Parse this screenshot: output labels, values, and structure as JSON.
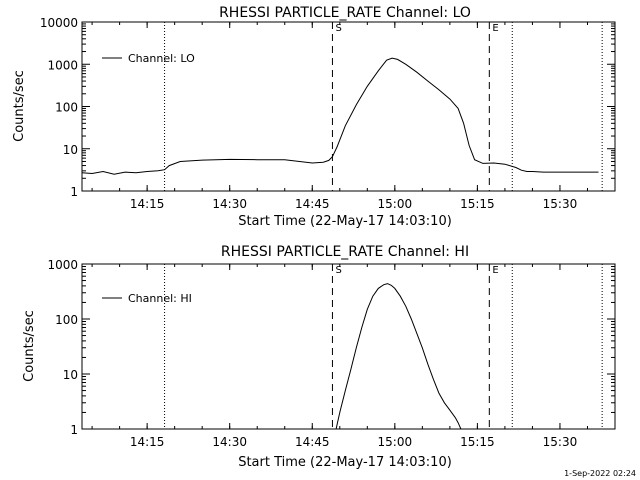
{
  "footer": {
    "timestamp": "1-Sep-2022 02:24"
  },
  "chart_data": [
    {
      "type": "line",
      "title": "RHESSI PARTICLE_RATE Channel: LO",
      "xlabel": "Start Time (22-May-17 14:03:10)",
      "ylabel": "Counts/sec",
      "xlim": [
        "14:03:10",
        "15:40:00"
      ],
      "ylim": [
        1,
        10000
      ],
      "y_scale": "log",
      "x_ticks": [
        "14:15",
        "14:30",
        "14:45",
        "15:00",
        "15:15",
        "15:30"
      ],
      "y_ticks": [
        "1",
        "10",
        "100",
        "1000",
        "10000"
      ],
      "legend": {
        "position": "top-left",
        "entries": [
          "Channel: LO"
        ]
      },
      "markers": [
        {
          "label": "",
          "time": "14:18:10",
          "style": "dotted"
        },
        {
          "label": "S",
          "time": "14:48:40",
          "style": "dashed"
        },
        {
          "label": "E",
          "time": "15:17:10",
          "style": "dashed"
        },
        {
          "label": "",
          "time": "15:21:20",
          "style": "dotted"
        },
        {
          "label": "",
          "time": "15:37:40",
          "style": "dotted"
        }
      ],
      "series": [
        {
          "name": "Channel: LO",
          "x": [
            "14:03:10",
            "14:05:00",
            "14:07:00",
            "14:09:00",
            "14:11:00",
            "14:13:00",
            "14:15:00",
            "14:17:00",
            "14:18:10",
            "14:19:00",
            "14:21:00",
            "14:25:00",
            "14:30:00",
            "14:35:00",
            "14:40:00",
            "14:45:00",
            "14:47:00",
            "14:48:00",
            "14:48:40",
            "14:49:30",
            "14:51:00",
            "14:53:00",
            "14:55:00",
            "14:57:00",
            "14:58:30",
            "14:59:30",
            "15:00:30",
            "15:02:00",
            "15:04:00",
            "15:06:00",
            "15:08:00",
            "15:10:00",
            "15:11:30",
            "15:12:30",
            "15:13:30",
            "15:14:30",
            "15:16:00",
            "15:18:00",
            "15:20:00",
            "15:22:00",
            "15:23:00",
            "15:24:00",
            "15:25:00",
            "15:27:00",
            "15:30:00",
            "15:33:00",
            "15:35:00",
            "15:37:00"
          ],
          "y": [
            2.7,
            2.6,
            2.9,
            2.5,
            2.8,
            2.7,
            2.9,
            3.0,
            3.2,
            4.0,
            5.0,
            5.4,
            5.6,
            5.5,
            5.5,
            4.6,
            4.8,
            5.3,
            6.5,
            11,
            35,
            110,
            300,
            700,
            1250,
            1400,
            1300,
            1000,
            650,
            400,
            250,
            150,
            90,
            40,
            12,
            5.5,
            4.5,
            4.6,
            4.3,
            3.6,
            3.1,
            2.9,
            2.9,
            2.8,
            2.8,
            2.8,
            2.8,
            2.8
          ]
        }
      ]
    },
    {
      "type": "line",
      "title": "RHESSI PARTICLE_RATE Channel: HI",
      "xlabel": "Start Time (22-May-17 14:03:10)",
      "ylabel": "Counts/sec",
      "xlim": [
        "14:03:10",
        "15:40:00"
      ],
      "ylim": [
        1,
        1000
      ],
      "y_scale": "log",
      "x_ticks": [
        "14:15",
        "14:30",
        "14:45",
        "15:00",
        "15:15",
        "15:30"
      ],
      "y_ticks": [
        "1",
        "10",
        "100",
        "1000"
      ],
      "legend": {
        "position": "top-left",
        "entries": [
          "Channel: HI"
        ]
      },
      "markers": [
        {
          "label": "",
          "time": "14:18:10",
          "style": "dotted"
        },
        {
          "label": "S",
          "time": "14:48:40",
          "style": "dashed"
        },
        {
          "label": "E",
          "time": "15:17:10",
          "style": "dashed"
        },
        {
          "label": "",
          "time": "15:21:20",
          "style": "dotted"
        },
        {
          "label": "",
          "time": "15:37:40",
          "style": "dotted"
        }
      ],
      "series": [
        {
          "name": "Channel: HI",
          "x": [
            "14:49:20",
            "14:50:00",
            "14:51:00",
            "14:52:00",
            "14:53:00",
            "14:54:00",
            "14:55:00",
            "14:56:00",
            "14:57:00",
            "14:58:00",
            "14:58:40",
            "14:59:20",
            "15:00:00",
            "15:01:00",
            "15:02:00",
            "15:03:00",
            "15:04:00",
            "15:05:00",
            "15:06:00",
            "15:07:00",
            "15:08:00",
            "15:09:00",
            "15:10:00",
            "15:11:00",
            "15:11:30",
            "15:12:00"
          ],
          "y": [
            1,
            2,
            5,
            12,
            30,
            70,
            150,
            260,
            360,
            420,
            440,
            410,
            360,
            260,
            170,
            100,
            55,
            30,
            15,
            8,
            4.5,
            3,
            2.2,
            1.6,
            1.3,
            1
          ]
        }
      ]
    }
  ]
}
